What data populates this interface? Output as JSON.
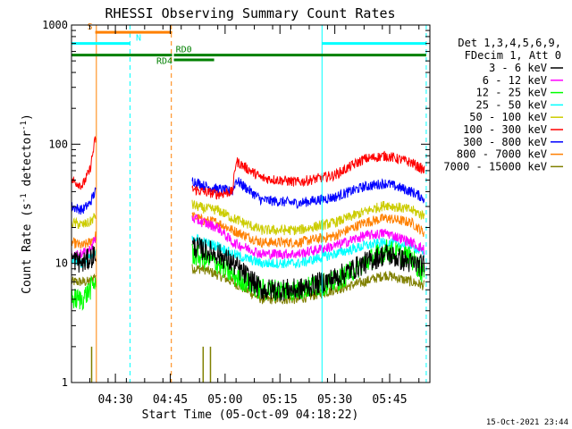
{
  "chart_data": {
    "type": "line",
    "title": "RHESSI Observing Summary Count Rates",
    "xlabel": "Start Time (05-Oct-09 04:18:22)",
    "ylabel": "Count Rate (s",
    "ylabel_sup": "-1",
    "ylabel_tail": " detector",
    "ylabel_tail_sup": "-1",
    "ylabel_close": ")",
    "y_scale": "log",
    "ylim": [
      1,
      1000
    ],
    "xlim_minutes": [
      0,
      98
    ],
    "x_ticks": [
      {
        "minute": 12,
        "label": "04:30"
      },
      {
        "minute": 27,
        "label": "04:45"
      },
      {
        "minute": 42,
        "label": "05:00"
      },
      {
        "minute": 57,
        "label": "05:15"
      },
      {
        "minute": 72,
        "label": "05:30"
      },
      {
        "minute": 87,
        "label": "05:45"
      }
    ],
    "y_ticks": [
      {
        "value": 1,
        "label": "1"
      },
      {
        "value": 10,
        "label": "10"
      },
      {
        "value": 100,
        "label": "100"
      },
      {
        "value": 1000,
        "label": "1000"
      }
    ],
    "legend": {
      "header1": "Det 1,3,4,5,6,9,",
      "header2": "FDecim 1, Att 0",
      "placement": "right"
    },
    "series": [
      {
        "name": "3 - 6 keV",
        "color": "#000000",
        "x": [
          0,
          3,
          5,
          6.5,
          33,
          36,
          40,
          44,
          52,
          62,
          72,
          80,
          86,
          93,
          96.5
        ],
        "values": [
          11,
          10,
          11,
          12,
          14,
          13,
          12,
          10,
          6,
          6,
          7.5,
          10,
          12,
          10,
          9.5
        ]
      },
      {
        "name": "6 - 12 keV",
        "color": "#ff00ff",
        "x": [
          0,
          3,
          5,
          6.5,
          33,
          36,
          40,
          44,
          52,
          62,
          72,
          80,
          86,
          93,
          96.5
        ],
        "values": [
          12,
          12,
          13,
          16,
          24,
          22,
          20,
          15,
          12,
          12,
          14,
          17,
          18,
          15,
          13
        ]
      },
      {
        "name": "12 - 25 keV",
        "color": "#00ff00",
        "x": [
          0,
          3,
          5,
          6.5,
          33,
          36,
          40,
          44,
          52,
          62,
          72,
          80,
          86,
          93,
          96.5
        ],
        "values": [
          5,
          5,
          6,
          7,
          12,
          11,
          10,
          8,
          6,
          6,
          7,
          10,
          13,
          11,
          8
        ]
      },
      {
        "name": "25 - 50 keV",
        "color": "#00ffff",
        "x": [
          0,
          3,
          5,
          6.5,
          33,
          36,
          40,
          44,
          52,
          62,
          72,
          80,
          86,
          93,
          96.5
        ],
        "values": [
          11,
          10,
          11,
          12,
          17,
          15,
          14,
          12,
          10,
          10,
          12,
          14,
          15,
          14,
          12
        ]
      },
      {
        "name": "50 - 100 keV",
        "color": "#cccc00",
        "x": [
          0,
          3,
          5,
          6.5,
          33,
          36,
          40,
          44,
          52,
          62,
          72,
          80,
          86,
          93,
          96.5
        ],
        "values": [
          22,
          21,
          22,
          25,
          31,
          29,
          28,
          24,
          19,
          19,
          22,
          27,
          31,
          28,
          25
        ]
      },
      {
        "name": "100 - 300 keV",
        "color": "#ff0000",
        "x": [
          0,
          3,
          5,
          6.5,
          33,
          36,
          40,
          44,
          45,
          52,
          62,
          72,
          80,
          86,
          93,
          96.5
        ],
        "values": [
          50,
          45,
          60,
          110,
          42,
          40,
          38,
          40,
          72,
          52,
          48,
          55,
          75,
          80,
          70,
          60
        ]
      },
      {
        "name": "300 - 800 keV",
        "color": "#0000ff",
        "x": [
          0,
          3,
          5,
          6.5,
          33,
          36,
          40,
          44,
          45,
          52,
          62,
          72,
          80,
          86,
          93,
          96.5
        ],
        "values": [
          30,
          28,
          32,
          40,
          50,
          45,
          42,
          40,
          50,
          34,
          32,
          36,
          44,
          47,
          40,
          35
        ]
      },
      {
        "name": "800 - 7000 keV",
        "color": "#ff8000",
        "x": [
          0,
          3,
          5,
          6.5,
          33,
          36,
          40,
          44,
          52,
          62,
          72,
          80,
          86,
          93,
          96.5
        ],
        "values": [
          15,
          14,
          15,
          17,
          25,
          23,
          22,
          19,
          15,
          15,
          17,
          22,
          24,
          22,
          18
        ]
      },
      {
        "name": "7000 - 15000 keV",
        "color": "#808000",
        "x": [
          0,
          3,
          5,
          6.5,
          33,
          36,
          40,
          44,
          52,
          62,
          72,
          80,
          86,
          93,
          96.5
        ],
        "values": [
          7,
          7,
          7,
          8,
          9,
          9,
          8,
          7,
          5,
          5,
          6,
          7,
          8,
          7,
          6.5
        ]
      }
    ],
    "spikes_7000_15000": [
      {
        "minute": 5.5,
        "value": 2
      },
      {
        "minute": 36,
        "value": 2
      },
      {
        "minute": 38,
        "value": 2
      }
    ],
    "level_bars": [
      {
        "label": "S",
        "color": "#ff8000",
        "level": 870,
        "x_start": 6.5,
        "x_end": 27.5
      },
      {
        "label": "N",
        "color": "#00ffff",
        "level": 700,
        "x_start": 0,
        "x_end": 16,
        "second_x_start": 68.5,
        "second_x_end": 97
      },
      {
        "label": "RD4",
        "color": "#008000",
        "level": 560,
        "x_start": 0,
        "x_end": 27.5
      },
      {
        "label": "RD0",
        "color": "#008000",
        "level": 560,
        "x_start": 28,
        "x_end": 97
      },
      {
        "label": "",
        "color": "#008000",
        "level": 510,
        "x_start": 28,
        "x_end": 39
      }
    ],
    "vlines": [
      {
        "minute": 6.8,
        "color": "#ff8000",
        "style": "solid"
      },
      {
        "minute": 16,
        "color": "#00ffff",
        "style": "dashed"
      },
      {
        "minute": 27.3,
        "color": "#ff8000",
        "style": "dashed"
      },
      {
        "minute": 68.5,
        "color": "#00ffff",
        "style": "solid"
      },
      {
        "minute": 97,
        "color": "#00ffff",
        "style": "dashed"
      }
    ],
    "footer_timestamp": "15-Oct-2021 23:44"
  }
}
